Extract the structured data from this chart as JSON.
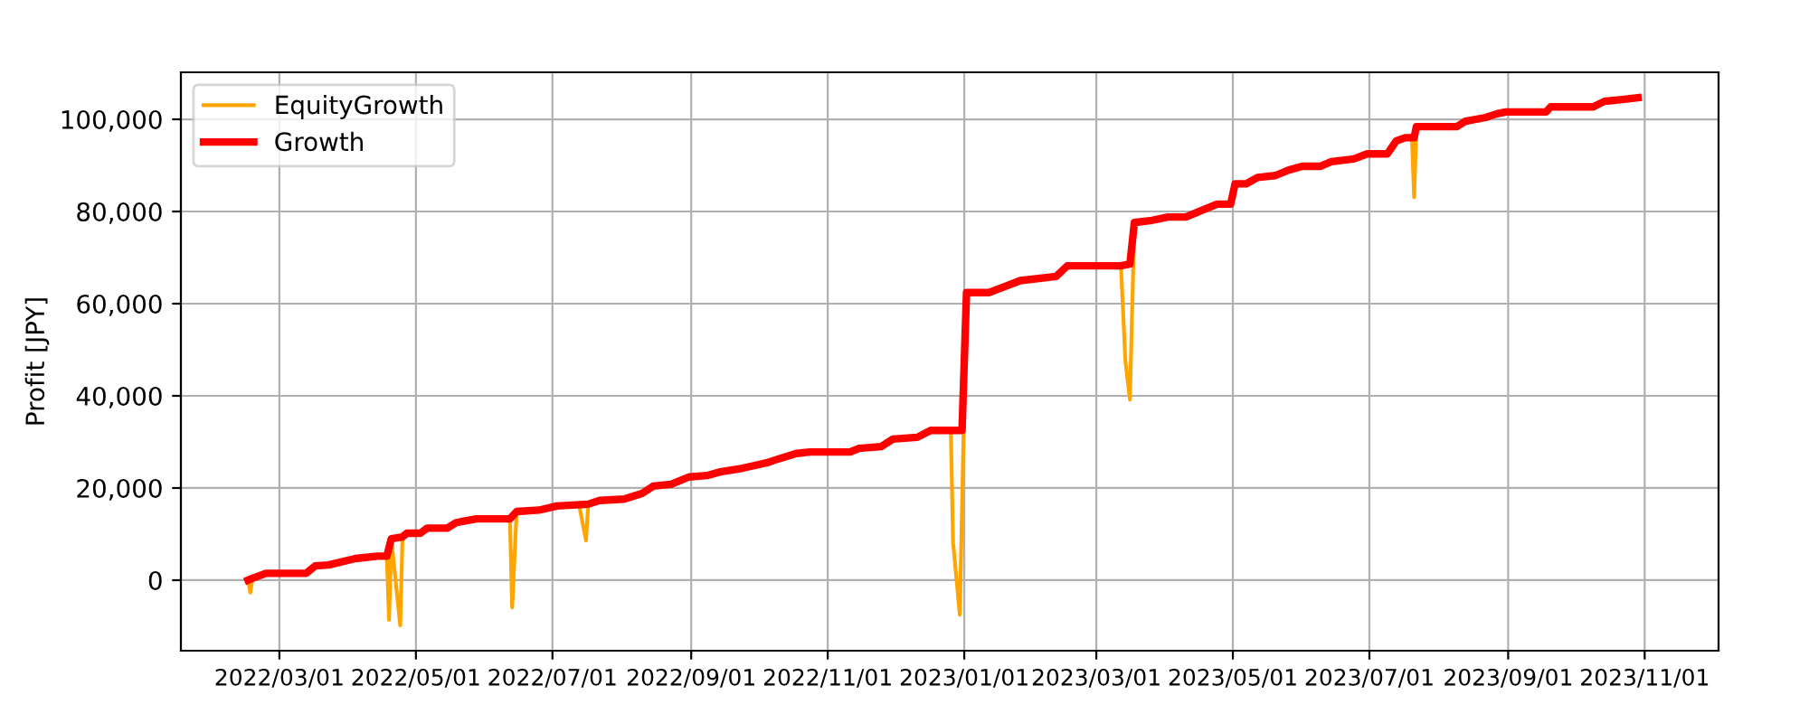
{
  "chart_data": {
    "type": "line",
    "ylabel": "Profit [JPY]",
    "xlim": [
      "2022-01-16",
      "2023-12-04"
    ],
    "xticks": [
      {
        "value": "2022-03-01",
        "label": "2022/03/01"
      },
      {
        "value": "2022-05-01",
        "label": "2022/05/01"
      },
      {
        "value": "2022-07-01",
        "label": "2022/07/01"
      },
      {
        "value": "2022-09-01",
        "label": "2022/09/01"
      },
      {
        "value": "2022-11-01",
        "label": "2022/11/01"
      },
      {
        "value": "2023-01-01",
        "label": "2023/01/01"
      },
      {
        "value": "2023-03-01",
        "label": "2023/03/01"
      },
      {
        "value": "2023-05-01",
        "label": "2023/05/01"
      },
      {
        "value": "2023-07-01",
        "label": "2023/07/01"
      },
      {
        "value": "2023-09-01",
        "label": "2023/09/01"
      },
      {
        "value": "2023-11-01",
        "label": "2023/11/01"
      }
    ],
    "ylim": [
      -15300,
      110200
    ],
    "yticks": [
      0,
      {
        "value": 20000,
        "label": "20,000"
      },
      {
        "value": 40000,
        "label": "40,000"
      },
      {
        "value": 60000,
        "label": "60,000"
      },
      {
        "value": 80000,
        "label": "80,000"
      },
      {
        "value": 100000,
        "label": "100,000"
      }
    ],
    "grid": true,
    "legend": "top left",
    "line_style": "solid",
    "marker": "none",
    "series": [
      {
        "name": "EquityGrowth",
        "color": "#ffa500",
        "x": [
          "2022-02-15",
          "2022-02-16",
          "2022-02-17",
          "2022-03-01",
          "2022-04-18",
          "2022-04-19",
          "2022-04-20",
          "2022-04-24",
          "2022-04-25",
          "2022-05-01",
          "2022-06-12",
          "2022-06-13",
          "2022-06-15",
          "2022-07-01",
          "2022-07-13",
          "2022-07-16",
          "2022-07-17",
          "2022-08-01",
          "2022-12-26",
          "2022-12-27",
          "2022-12-30",
          "2023-01-02",
          "2023-02-01",
          "2023-03-12",
          "2023-03-14",
          "2023-03-16",
          "2023-03-18",
          "2023-04-01",
          "2023-07-20",
          "2023-07-21",
          "2023-07-22"
        ],
        "values": [
          0,
          -2700,
          400,
          null,
          5200,
          -8600,
          9000,
          -9800,
          9400,
          null,
          13300,
          -5900,
          14900,
          null,
          16100,
          8600,
          16500,
          null,
          32500,
          8200,
          -7500,
          62400,
          null,
          68200,
          47500,
          39200,
          77600,
          null,
          96000,
          83100,
          98400
        ]
      },
      {
        "name": "Growth",
        "color": "#ff0000",
        "x": [
          "2022-02-15",
          "2022-02-17",
          "2022-02-23",
          "2022-03-13",
          "2022-03-17",
          "2022-03-23",
          "2022-04-04",
          "2022-04-14",
          "2022-04-18",
          "2022-04-20",
          "2022-04-25",
          "2022-04-27",
          "2022-05-03",
          "2022-05-06",
          "2022-05-15",
          "2022-05-19",
          "2022-05-28",
          "2022-06-12",
          "2022-06-15",
          "2022-06-25",
          "2022-07-03",
          "2022-07-17",
          "2022-07-22",
          "2022-08-02",
          "2022-08-10",
          "2022-08-15",
          "2022-08-23",
          "2022-08-31",
          "2022-09-08",
          "2022-09-14",
          "2022-09-24",
          "2022-10-05",
          "2022-10-08",
          "2022-10-18",
          "2022-10-24",
          "2022-11-11",
          "2022-11-15",
          "2022-11-25",
          "2022-11-30",
          "2022-12-11",
          "2022-12-17",
          "2022-12-31",
          "2023-01-02",
          "2023-01-12",
          "2023-01-18",
          "2023-01-26",
          "2023-02-11",
          "2023-02-16",
          "2023-03-12",
          "2023-03-16",
          "2023-03-18",
          "2023-03-25",
          "2023-04-02",
          "2023-04-10",
          "2023-04-18",
          "2023-04-24",
          "2023-04-30",
          "2023-05-02",
          "2023-05-07",
          "2023-05-12",
          "2023-05-20",
          "2023-05-26",
          "2023-06-01",
          "2023-06-09",
          "2023-06-14",
          "2023-06-24",
          "2023-06-30",
          "2023-07-09",
          "2023-07-13",
          "2023-07-17",
          "2023-07-21",
          "2023-07-22",
          "2023-08-09",
          "2023-08-13",
          "2023-08-22",
          "2023-08-27",
          "2023-08-31",
          "2023-09-18",
          "2023-09-20",
          "2023-10-09",
          "2023-10-14",
          "2023-10-22",
          "2023-10-29"
        ],
        "values": [
          0,
          400,
          1500,
          1500,
          3100,
          3300,
          4700,
          5200,
          5200,
          9000,
          9400,
          10200,
          10200,
          11300,
          11300,
          12500,
          13300,
          13300,
          14900,
          15200,
          16100,
          16500,
          17300,
          17600,
          18800,
          20400,
          20800,
          22400,
          22700,
          23500,
          24300,
          25500,
          26000,
          27500,
          27800,
          27800,
          28600,
          29000,
          30600,
          31000,
          32500,
          32500,
          62400,
          62400,
          63500,
          65000,
          65900,
          68200,
          68200,
          68600,
          77600,
          78000,
          78800,
          78800,
          80400,
          81600,
          81600,
          86000,
          86000,
          87400,
          87800,
          89000,
          89800,
          89800,
          90800,
          91400,
          92500,
          92500,
          95300,
          96000,
          96000,
          98400,
          98400,
          99600,
          100400,
          101200,
          101600,
          101600,
          102700,
          102700,
          103900,
          104300,
          104700
        ]
      }
    ]
  }
}
